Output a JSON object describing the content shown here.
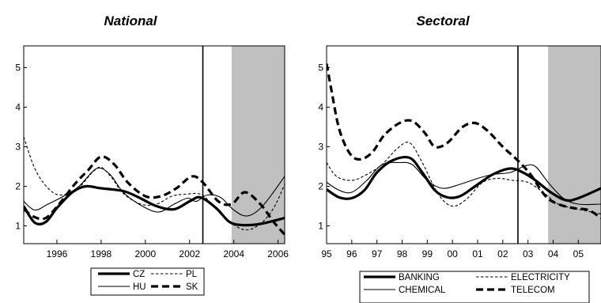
{
  "chart_data": [
    {
      "type": "line",
      "title": "National",
      "xlim": [
        1994.5,
        2006.3
      ],
      "ylim": [
        0.55,
        5.55
      ],
      "x_ticks": [
        1996,
        1998,
        2000,
        2002,
        2004,
        2006
      ],
      "x_tick_labels": [
        "1996",
        "1998",
        "2000",
        "2002",
        "2004",
        "2006"
      ],
      "y_ticks": [
        1,
        2,
        3,
        4,
        5
      ],
      "y_tick_labels": [
        "1",
        "2",
        "3",
        "4",
        "5"
      ],
      "vline": 2002.6,
      "shaded": [
        2003.9,
        2006.3
      ],
      "legend": [
        "CZ",
        "PL",
        "HU",
        "SK"
      ],
      "series": [
        {
          "name": "CZ",
          "style": "thick",
          "points": [
            [
              1994.5,
              1.5
            ],
            [
              1995,
              1.08
            ],
            [
              1995.5,
              1.1
            ],
            [
              1996,
              1.45
            ],
            [
              1996.7,
              1.85
            ],
            [
              1997.3,
              2.0
            ],
            [
              1998,
              1.95
            ],
            [
              1999,
              1.88
            ],
            [
              1999.7,
              1.72
            ],
            [
              2000.5,
              1.5
            ],
            [
              2001.3,
              1.42
            ],
            [
              2002,
              1.62
            ],
            [
              2002.5,
              1.72
            ],
            [
              2003.2,
              1.45
            ],
            [
              2003.8,
              1.1
            ],
            [
              2004.4,
              1.02
            ],
            [
              2005.2,
              1.05
            ],
            [
              2006.3,
              1.2
            ]
          ]
        },
        {
          "name": "PL",
          "style": "dashed-thin",
          "points": [
            [
              1994.5,
              3.25
            ],
            [
              1995,
              2.45
            ],
            [
              1995.6,
              1.95
            ],
            [
              1996.2,
              1.78
            ],
            [
              1997,
              1.98
            ],
            [
              1997.6,
              2.35
            ],
            [
              1998,
              2.48
            ],
            [
              1998.5,
              2.2
            ],
            [
              1999,
              1.82
            ],
            [
              1999.8,
              1.55
            ],
            [
              2000.5,
              1.55
            ],
            [
              2001.2,
              1.75
            ],
            [
              2001.8,
              1.8
            ],
            [
              2002.5,
              1.8
            ],
            [
              2003,
              1.55
            ],
            [
              2003.7,
              1.15
            ],
            [
              2004.5,
              0.9
            ],
            [
              2005.2,
              1.05
            ],
            [
              2005.8,
              1.45
            ],
            [
              2006.3,
              2.05
            ]
          ]
        },
        {
          "name": "HU",
          "style": "thin",
          "points": [
            [
              1994.5,
              1.62
            ],
            [
              1995,
              1.4
            ],
            [
              1995.6,
              1.55
            ],
            [
              1996.3,
              1.75
            ],
            [
              1997,
              2.0
            ],
            [
              1997.8,
              2.45
            ],
            [
              1998.4,
              2.3
            ],
            [
              1999,
              1.85
            ],
            [
              1999.8,
              1.52
            ],
            [
              2000.6,
              1.35
            ],
            [
              2001.3,
              1.55
            ],
            [
              2001.9,
              1.7
            ],
            [
              2002.3,
              1.62
            ],
            [
              2002.8,
              1.78
            ],
            [
              2003.4,
              1.72
            ],
            [
              2004,
              1.4
            ],
            [
              2004.6,
              1.25
            ],
            [
              2005.3,
              1.5
            ],
            [
              2006.3,
              2.25
            ]
          ]
        },
        {
          "name": "SK",
          "style": "dashed-thick",
          "points": [
            [
              1994.5,
              1.42
            ],
            [
              1995,
              1.22
            ],
            [
              1995.5,
              1.2
            ],
            [
              1996.1,
              1.55
            ],
            [
              1996.8,
              2.05
            ],
            [
              1997.4,
              2.4
            ],
            [
              1998,
              2.75
            ],
            [
              1998.6,
              2.55
            ],
            [
              1999.2,
              2.1
            ],
            [
              2000,
              1.75
            ],
            [
              2000.7,
              1.75
            ],
            [
              2001.4,
              1.95
            ],
            [
              2002.1,
              2.25
            ],
            [
              2002.6,
              2.1
            ],
            [
              2003.3,
              1.62
            ],
            [
              2003.9,
              1.55
            ],
            [
              2004.5,
              1.85
            ],
            [
              2005.2,
              1.55
            ],
            [
              2005.8,
              1.1
            ],
            [
              2006.3,
              0.78
            ]
          ]
        }
      ]
    },
    {
      "type": "line",
      "title": "Sectoral",
      "xlim": [
        1995.0,
        2005.9
      ],
      "ylim": [
        0.55,
        5.55
      ],
      "x_ticks": [
        1995,
        1996,
        1997,
        1998,
        1999,
        2000,
        2001,
        2002,
        2003,
        2004,
        2005
      ],
      "x_tick_labels": [
        "95",
        "96",
        "97",
        "98",
        "99",
        "00",
        "01",
        "02",
        "03",
        "04",
        "05"
      ],
      "y_ticks": [
        1,
        2,
        3,
        4,
        5
      ],
      "y_tick_labels": [
        "1",
        "2",
        "3",
        "4",
        "5"
      ],
      "vline": 2002.6,
      "shaded": [
        2003.8,
        2005.9
      ],
      "legend": [
        "BANKING",
        "ELECTRICITY",
        "CHEMICAL",
        "TELECOM"
      ],
      "series": [
        {
          "name": "BANKING",
          "style": "thick",
          "points": [
            [
              1995,
              1.92
            ],
            [
              1995.5,
              1.72
            ],
            [
              1996,
              1.7
            ],
            [
              1996.5,
              1.9
            ],
            [
              1997,
              2.35
            ],
            [
              1997.6,
              2.65
            ],
            [
              1998.3,
              2.72
            ],
            [
              1998.8,
              2.35
            ],
            [
              1999.3,
              1.9
            ],
            [
              1999.8,
              1.72
            ],
            [
              2000.3,
              1.75
            ],
            [
              2000.9,
              2.0
            ],
            [
              2001.6,
              2.3
            ],
            [
              2002.3,
              2.45
            ],
            [
              2002.8,
              2.35
            ],
            [
              2003.3,
              2.15
            ],
            [
              2003.9,
              1.85
            ],
            [
              2004.5,
              1.65
            ],
            [
              2005,
              1.7
            ],
            [
              2005.9,
              1.95
            ]
          ]
        },
        {
          "name": "ELECTRICITY",
          "style": "dashed-thin",
          "points": [
            [
              1995,
              2.6
            ],
            [
              1995.4,
              2.25
            ],
            [
              1996,
              2.15
            ],
            [
              1996.6,
              2.3
            ],
            [
              1997.2,
              2.55
            ],
            [
              1997.8,
              2.95
            ],
            [
              1998.3,
              3.1
            ],
            [
              1998.8,
              2.6
            ],
            [
              1999.3,
              1.95
            ],
            [
              1999.7,
              1.6
            ],
            [
              2000.1,
              1.5
            ],
            [
              2000.6,
              1.7
            ],
            [
              2001.2,
              2.1
            ],
            [
              2001.8,
              2.2
            ],
            [
              2002.4,
              2.15
            ],
            [
              2003,
              2.1
            ],
            [
              2003.6,
              1.85
            ],
            [
              2004.2,
              1.55
            ],
            [
              2004.8,
              1.45
            ],
            [
              2005.9,
              1.3
            ]
          ]
        },
        {
          "name": "CHEMICAL",
          "style": "thin",
          "points": [
            [
              1995,
              2.1
            ],
            [
              1995.5,
              1.9
            ],
            [
              1996,
              1.85
            ],
            [
              1996.6,
              2.15
            ],
            [
              1997.2,
              2.55
            ],
            [
              1997.9,
              2.6
            ],
            [
              1998.4,
              2.55
            ],
            [
              1999,
              2.15
            ],
            [
              1999.6,
              1.95
            ],
            [
              2000.3,
              2.05
            ],
            [
              2001,
              2.2
            ],
            [
              2001.6,
              2.3
            ],
            [
              2002.3,
              2.35
            ],
            [
              2002.9,
              2.52
            ],
            [
              2003.3,
              2.5
            ],
            [
              2003.8,
              2.1
            ],
            [
              2004.4,
              1.7
            ],
            [
              2005,
              1.55
            ],
            [
              2005.9,
              1.55
            ]
          ]
        },
        {
          "name": "TELECOM",
          "style": "dashed-thick",
          "points": [
            [
              1995,
              5.1
            ],
            [
              1995.2,
              4.4
            ],
            [
              1995.5,
              3.45
            ],
            [
              1995.9,
              2.85
            ],
            [
              1996.3,
              2.68
            ],
            [
              1996.8,
              2.85
            ],
            [
              1997.3,
              3.3
            ],
            [
              1997.9,
              3.6
            ],
            [
              1998.4,
              3.65
            ],
            [
              1998.9,
              3.35
            ],
            [
              1999.3,
              3.0
            ],
            [
              1999.8,
              3.1
            ],
            [
              2000.4,
              3.5
            ],
            [
              2000.9,
              3.6
            ],
            [
              2001.4,
              3.4
            ],
            [
              2002,
              3.0
            ],
            [
              2002.6,
              2.65
            ],
            [
              2003.1,
              2.3
            ],
            [
              2003.7,
              1.75
            ],
            [
              2004.2,
              1.55
            ],
            [
              2004.8,
              1.45
            ],
            [
              2005.4,
              1.4
            ],
            [
              2005.9,
              1.2
            ]
          ]
        }
      ]
    }
  ]
}
